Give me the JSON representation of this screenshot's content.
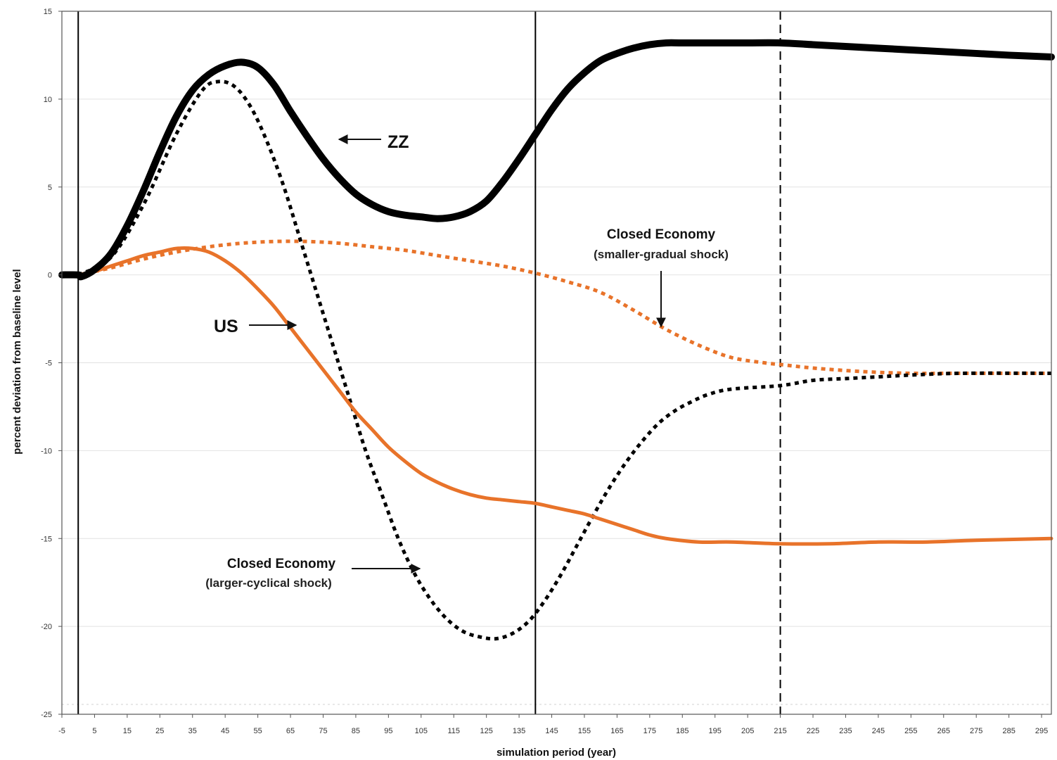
{
  "chart_data": {
    "type": "line",
    "title": "",
    "xlabel": "simulation period (year)",
    "ylabel": "percent deviation from baseline level",
    "xlim": [
      -5,
      298
    ],
    "ylim": [
      -25,
      15
    ],
    "x_ticks": [
      -5,
      5,
      15,
      25,
      35,
      45,
      55,
      65,
      75,
      85,
      95,
      105,
      115,
      125,
      135,
      145,
      155,
      165,
      175,
      185,
      195,
      205,
      215,
      225,
      235,
      245,
      255,
      265,
      275,
      285,
      295
    ],
    "y_ticks": [
      -25,
      -20,
      -15,
      -10,
      -5,
      0,
      5,
      10,
      15
    ],
    "grid": "horizontal",
    "reference_lines": [
      {
        "x": 0,
        "style": "solid"
      },
      {
        "x": 140,
        "style": "solid"
      },
      {
        "x": 215,
        "style": "dashed"
      }
    ],
    "series": [
      {
        "name": "ZZ",
        "color": "#000000",
        "style": "solid-thick",
        "points": [
          [
            -5,
            0
          ],
          [
            0,
            0
          ],
          [
            1,
            -0.1
          ],
          [
            5,
            0.3
          ],
          [
            10,
            1.2
          ],
          [
            15,
            2.8
          ],
          [
            20,
            4.8
          ],
          [
            25,
            7
          ],
          [
            30,
            9
          ],
          [
            35,
            10.5
          ],
          [
            40,
            11.4
          ],
          [
            45,
            11.9
          ],
          [
            50,
            12.1
          ],
          [
            55,
            11.8
          ],
          [
            60,
            10.8
          ],
          [
            65,
            9.3
          ],
          [
            70,
            7.9
          ],
          [
            75,
            6.6
          ],
          [
            80,
            5.5
          ],
          [
            85,
            4.6
          ],
          [
            90,
            4
          ],
          [
            95,
            3.6
          ],
          [
            100,
            3.4
          ],
          [
            105,
            3.3
          ],
          [
            110,
            3.2
          ],
          [
            115,
            3.3
          ],
          [
            120,
            3.6
          ],
          [
            125,
            4.2
          ],
          [
            130,
            5.3
          ],
          [
            135,
            6.6
          ],
          [
            140,
            8
          ],
          [
            145,
            9.4
          ],
          [
            150,
            10.6
          ],
          [
            155,
            11.5
          ],
          [
            160,
            12.2
          ],
          [
            165,
            12.6
          ],
          [
            170,
            12.9
          ],
          [
            175,
            13.1
          ],
          [
            180,
            13.2
          ],
          [
            185,
            13.2
          ],
          [
            195,
            13.2
          ],
          [
            205,
            13.2
          ],
          [
            215,
            13.2
          ],
          [
            225,
            13.1
          ],
          [
            235,
            13
          ],
          [
            245,
            12.9
          ],
          [
            255,
            12.8
          ],
          [
            265,
            12.7
          ],
          [
            275,
            12.6
          ],
          [
            285,
            12.5
          ],
          [
            298,
            12.4
          ]
        ]
      },
      {
        "name": "US",
        "color": "#e8732a",
        "style": "solid",
        "points": [
          [
            0,
            0
          ],
          [
            5,
            0.2
          ],
          [
            10,
            0.5
          ],
          [
            15,
            0.8
          ],
          [
            20,
            1.1
          ],
          [
            25,
            1.3
          ],
          [
            30,
            1.5
          ],
          [
            35,
            1.5
          ],
          [
            40,
            1.3
          ],
          [
            45,
            0.8
          ],
          [
            50,
            0.1
          ],
          [
            55,
            -0.8
          ],
          [
            60,
            -1.8
          ],
          [
            65,
            -3
          ],
          [
            70,
            -4.2
          ],
          [
            75,
            -5.4
          ],
          [
            80,
            -6.6
          ],
          [
            85,
            -7.8
          ],
          [
            90,
            -8.8
          ],
          [
            95,
            -9.8
          ],
          [
            100,
            -10.6
          ],
          [
            105,
            -11.3
          ],
          [
            110,
            -11.8
          ],
          [
            115,
            -12.2
          ],
          [
            120,
            -12.5
          ],
          [
            125,
            -12.7
          ],
          [
            130,
            -12.8
          ],
          [
            135,
            -12.9
          ],
          [
            140,
            -13
          ],
          [
            145,
            -13.2
          ],
          [
            150,
            -13.4
          ],
          [
            155,
            -13.6
          ],
          [
            160,
            -13.9
          ],
          [
            165,
            -14.2
          ],
          [
            170,
            -14.5
          ],
          [
            175,
            -14.8
          ],
          [
            180,
            -15
          ],
          [
            190,
            -15.2
          ],
          [
            200,
            -15.2
          ],
          [
            215,
            -15.3
          ],
          [
            230,
            -15.3
          ],
          [
            245,
            -15.2
          ],
          [
            260,
            -15.2
          ],
          [
            275,
            -15.1
          ],
          [
            298,
            -15
          ]
        ]
      },
      {
        "name": "Closed Economy (smaller-gradual shock)",
        "color": "#e8732a",
        "style": "dotted",
        "points": [
          [
            0,
            0
          ],
          [
            10,
            0.4
          ],
          [
            20,
            0.9
          ],
          [
            30,
            1.3
          ],
          [
            40,
            1.6
          ],
          [
            50,
            1.8
          ],
          [
            60,
            1.9
          ],
          [
            70,
            1.9
          ],
          [
            80,
            1.8
          ],
          [
            90,
            1.6
          ],
          [
            100,
            1.4
          ],
          [
            110,
            1.1
          ],
          [
            120,
            0.8
          ],
          [
            130,
            0.5
          ],
          [
            140,
            0.1
          ],
          [
            150,
            -0.4
          ],
          [
            160,
            -1
          ],
          [
            170,
            -2
          ],
          [
            180,
            -3.1
          ],
          [
            190,
            -4
          ],
          [
            200,
            -4.7
          ],
          [
            210,
            -5
          ],
          [
            215,
            -5.1
          ],
          [
            225,
            -5.3
          ],
          [
            240,
            -5.5
          ],
          [
            255,
            -5.6
          ],
          [
            270,
            -5.6
          ],
          [
            298,
            -5.6
          ]
        ]
      },
      {
        "name": "Closed Economy (larger-cyclical shock)",
        "color": "#000000",
        "style": "dotted",
        "points": [
          [
            0,
            0
          ],
          [
            10,
            1
          ],
          [
            20,
            4
          ],
          [
            30,
            8
          ],
          [
            38,
            10.5
          ],
          [
            43,
            11
          ],
          [
            48,
            10.7
          ],
          [
            53,
            9.5
          ],
          [
            58,
            7.5
          ],
          [
            63,
            5
          ],
          [
            68,
            2
          ],
          [
            73,
            -1
          ],
          [
            78,
            -4
          ],
          [
            83,
            -7
          ],
          [
            88,
            -10
          ],
          [
            93,
            -12.5
          ],
          [
            98,
            -15
          ],
          [
            103,
            -17
          ],
          [
            108,
            -18.5
          ],
          [
            113,
            -19.6
          ],
          [
            118,
            -20.3
          ],
          [
            123,
            -20.6
          ],
          [
            128,
            -20.7
          ],
          [
            133,
            -20.4
          ],
          [
            138,
            -19.7
          ],
          [
            143,
            -18.5
          ],
          [
            148,
            -17
          ],
          [
            153,
            -15.3
          ],
          [
            158,
            -13.6
          ],
          [
            163,
            -12
          ],
          [
            168,
            -10.6
          ],
          [
            173,
            -9.4
          ],
          [
            178,
            -8.4
          ],
          [
            183,
            -7.7
          ],
          [
            188,
            -7.2
          ],
          [
            193,
            -6.8
          ],
          [
            200,
            -6.5
          ],
          [
            215,
            -6.3
          ],
          [
            225,
            -6
          ],
          [
            235,
            -5.9
          ],
          [
            245,
            -5.8
          ],
          [
            255,
            -5.7
          ],
          [
            270,
            -5.6
          ],
          [
            298,
            -5.6
          ]
        ]
      }
    ],
    "annotations": [
      {
        "label": "ZZ",
        "subtitle": ""
      },
      {
        "label": "US",
        "subtitle": ""
      },
      {
        "label": "Closed Economy",
        "subtitle": "(smaller-gradual shock)"
      },
      {
        "label": "Closed Economy",
        "subtitle": "(larger-cyclical shock)"
      }
    ]
  }
}
